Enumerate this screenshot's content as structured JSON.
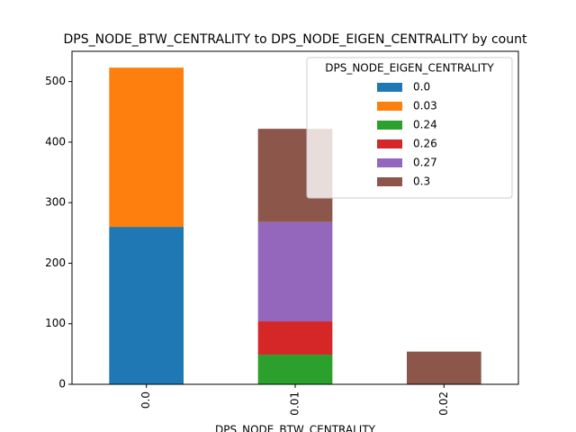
{
  "chart_data": {
    "type": "bar",
    "stacked": true,
    "title": "DPS_NODE_BTW_CENTRALITY to DPS_NODE_EIGEN_CENTRALITY by count",
    "x_label": "DPS_NODE_BTW_CENTRALITY",
    "legend_title": "DPS_NODE_EIGEN_CENTRALITY",
    "legend_position": "upper right",
    "categories": [
      "0.0",
      "0.01",
      "0.02"
    ],
    "series": [
      {
        "name": "0.0",
        "color": "#1f77b4",
        "values": [
          260,
          null,
          null
        ]
      },
      {
        "name": "0.03",
        "color": "#ff7f0e",
        "values": [
          263,
          null,
          null
        ]
      },
      {
        "name": "0.24",
        "color": "#2ca02c",
        "values": [
          null,
          49,
          null
        ]
      },
      {
        "name": "0.26",
        "color": "#d62728",
        "values": [
          null,
          55,
          null
        ]
      },
      {
        "name": "0.27",
        "color": "#9467bd",
        "values": [
          null,
          164,
          null
        ]
      },
      {
        "name": "0.3",
        "color": "#8c564b",
        "values": [
          null,
          154,
          54
        ]
      }
    ],
    "ylim": [
      0,
      550
    ],
    "yticks": [
      0,
      100,
      200,
      300,
      400,
      500
    ]
  }
}
